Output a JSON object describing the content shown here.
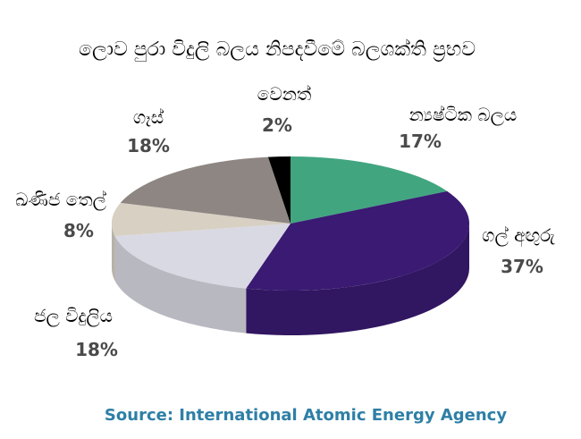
{
  "chart_data": {
    "type": "pie",
    "title": "ලොව පුරා විදුලි බලය නිපදවීමේ බලශක්ති ප්‍රභව",
    "slices": [
      {
        "label": "න්‍යෂ්ටික බලය",
        "value": 17,
        "value_label": "17%",
        "color": "#41a580"
      },
      {
        "label": "ගල් අඟුරු",
        "value": 37,
        "value_label": "37%",
        "color": "#3a1a72"
      },
      {
        "label": "ජල විදුලිය",
        "value": 18,
        "value_label": "18%",
        "color": "#d9d9e3"
      },
      {
        "label": "ඛණිජ තෙල්",
        "value": 8,
        "value_label": "8%",
        "color": "#d8d0c3"
      },
      {
        "label": "ගෑස්",
        "value": 18,
        "value_label": "18%",
        "color": "#8e8682"
      },
      {
        "label": "වෙනත්",
        "value": 2,
        "value_label": "2%",
        "color": "#000000"
      }
    ],
    "legend": "none",
    "source": "Source: International Atomic Energy Agency",
    "source_color": "#2e7fa6"
  }
}
